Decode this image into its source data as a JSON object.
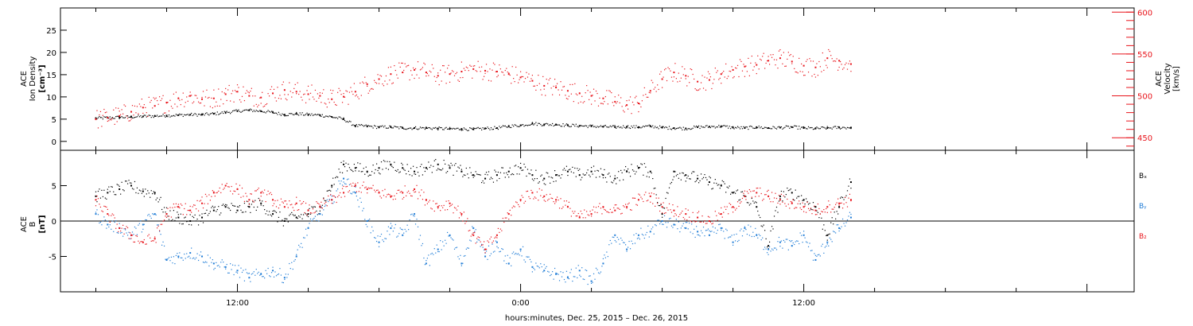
{
  "chart_data": [
    {
      "type": "scatter",
      "ylabel_lines": [
        "ACE",
        "Ion Density",
        "[cm⁻³]"
      ],
      "y2label_lines": [
        "ACE",
        "Velocity",
        "[km/s]"
      ],
      "ylim": [
        -2,
        30
      ],
      "yticks": [
        0,
        5,
        10,
        15,
        20,
        25
      ],
      "y2lim": [
        435,
        605
      ],
      "y2ticks": [
        450,
        500,
        550,
        600
      ],
      "colors": {
        "density": "#000000",
        "speed": "#e8141b"
      },
      "series": [
        {
          "key": "density",
          "axis": "left",
          "x": [
            6,
            6.5,
            7,
            7.5,
            8,
            8.5,
            9,
            9.5,
            10,
            10.5,
            11,
            11.5,
            12,
            12.5,
            13,
            13.5,
            14,
            14.5,
            15,
            15.5,
            16,
            16.5,
            17,
            17.5,
            18,
            18.5,
            19,
            19.5,
            20,
            20.5,
            21,
            21.5,
            22,
            22.5,
            23,
            23.5,
            24,
            24.5,
            25,
            25.5,
            26,
            26.5,
            27,
            27.5,
            28,
            28.5,
            29,
            29.5,
            30,
            30.5,
            31,
            31.5,
            32,
            32.5,
            33,
            33.5,
            34,
            34.5,
            35,
            35.5,
            36,
            36.5,
            37,
            37.5,
            38
          ],
          "values": [
            5.2,
            5.3,
            5.4,
            5.5,
            5.6,
            5.7,
            5.8,
            5.9,
            6.0,
            6.0,
            6.2,
            6.5,
            6.8,
            7.0,
            6.8,
            6.5,
            6.0,
            6.2,
            6.0,
            5.9,
            5.5,
            5.0,
            3.5,
            3.4,
            3.2,
            3.2,
            3.0,
            3.0,
            3.0,
            2.9,
            2.8,
            2.8,
            2.7,
            2.9,
            3.0,
            3.4,
            3.6,
            4.0,
            3.8,
            3.8,
            3.6,
            3.5,
            3.4,
            3.3,
            3.2,
            3.3,
            3.2,
            3.4,
            3.1,
            3.0,
            2.9,
            3.2,
            3.3,
            3.4,
            3.1,
            3.0,
            3.2,
            3.0,
            3.1,
            3.2,
            3.0,
            2.9,
            3.0,
            3.1,
            3.1
          ]
        },
        {
          "key": "speed",
          "axis": "right",
          "x": [
            6,
            6.5,
            7,
            7.5,
            8,
            8.5,
            9,
            9.5,
            10,
            10.5,
            11,
            11.5,
            12,
            12.5,
            13,
            13.5,
            14,
            14.5,
            15,
            15.5,
            16,
            16.5,
            17,
            17.5,
            18,
            18.5,
            19,
            19.5,
            20,
            20.5,
            21,
            21.5,
            22,
            22.5,
            23,
            23.5,
            24,
            24.5,
            25,
            25.5,
            26,
            26.5,
            27,
            27.5,
            28,
            28.5,
            29,
            29.5,
            30,
            30.5,
            31,
            31.5,
            32,
            32.5,
            33,
            33.5,
            34,
            34.5,
            35,
            35.5,
            36,
            36.5,
            37,
            37.5,
            38
          ],
          "values": [
            472,
            474,
            476,
            481,
            486,
            488,
            492,
            497,
            500,
            496,
            497,
            502,
            505,
            500,
            498,
            503,
            507,
            505,
            502,
            500,
            496,
            499,
            505,
            514,
            520,
            526,
            528,
            531,
            528,
            524,
            526,
            529,
            532,
            530,
            529,
            526,
            522,
            518,
            512,
            510,
            506,
            503,
            500,
            497,
            493,
            489,
            491,
            506,
            520,
            528,
            524,
            517,
            519,
            526,
            531,
            535,
            537,
            542,
            545,
            541,
            536,
            534,
            545,
            542,
            538
          ]
        }
      ],
      "x_title": ""
    },
    {
      "type": "scatter",
      "ylabel_lines": [
        "ACE",
        "B",
        "[nT]"
      ],
      "ylim": [
        -10,
        10
      ],
      "yticks": [
        -5,
        0,
        5
      ],
      "zero_line": true,
      "colors": {
        "bx": "#000000",
        "by": "#1f7cd6",
        "bz": "#e8141b"
      },
      "legend": [
        "Bₓ",
        "Bᵧ",
        "B₂"
      ],
      "series": [
        {
          "key": "bx",
          "x": [
            6,
            6.5,
            7,
            7.5,
            8,
            8.5,
            9,
            9.5,
            10,
            10.5,
            11,
            11.5,
            12,
            12.5,
            13,
            13.5,
            14,
            14.5,
            15,
            15.5,
            16,
            16.5,
            17,
            17.5,
            18,
            18.5,
            19,
            19.5,
            20,
            20.5,
            21,
            21.5,
            22,
            22.5,
            23,
            23.5,
            24,
            24.5,
            25,
            25.5,
            26,
            26.5,
            27,
            27.5,
            28,
            28.5,
            29,
            29.5,
            30,
            30.5,
            31,
            31.5,
            32,
            32.5,
            33,
            33.5,
            34,
            34.5,
            35,
            35.5,
            36,
            36.5,
            37,
            37.5,
            38
          ],
          "values": [
            3.5,
            4.0,
            4.5,
            5.0,
            4.2,
            4.0,
            1.0,
            0.5,
            0.0,
            0.5,
            1.5,
            2.0,
            1.5,
            2.0,
            2.5,
            1.0,
            0.0,
            0.5,
            1.0,
            2.0,
            5.0,
            8.0,
            7.5,
            7.0,
            7.5,
            8.0,
            7.5,
            7.0,
            7.5,
            8.0,
            7.5,
            7.0,
            6.5,
            6.0,
            6.5,
            7.0,
            7.5,
            6.5,
            6.0,
            6.5,
            7.0,
            6.5,
            7.0,
            6.5,
            6.0,
            7.0,
            7.5,
            7.0,
            1.0,
            7.0,
            6.5,
            6.0,
            5.5,
            5.0,
            4.0,
            3.5,
            2.0,
            -3.5,
            3.5,
            4.0,
            3.0,
            2.0,
            -2.0,
            2.0,
            5.5
          ]
        },
        {
          "key": "by",
          "x": [
            6,
            6.5,
            7,
            7.5,
            8,
            8.5,
            9,
            9.5,
            10,
            10.5,
            11,
            11.5,
            12,
            12.5,
            13,
            13.5,
            14,
            14.5,
            15,
            15.5,
            16,
            16.5,
            17,
            17.5,
            18,
            18.5,
            19,
            19.5,
            20,
            20.5,
            21,
            21.5,
            22,
            22.5,
            23,
            23.5,
            24,
            24.5,
            25,
            25.5,
            26,
            26.5,
            27,
            27.5,
            28,
            28.5,
            29,
            29.5,
            30,
            30.5,
            31,
            31.5,
            32,
            32.5,
            33,
            33.5,
            34,
            34.5,
            35,
            35.5,
            36,
            36.5,
            37,
            37.5,
            38
          ],
          "values": [
            1.0,
            -0.5,
            -1.0,
            -2.0,
            -0.5,
            1.0,
            -5.5,
            -5.0,
            -4.5,
            -5.0,
            -6.0,
            -6.5,
            -7.0,
            -8.0,
            -7.5,
            -7.0,
            -8.0,
            -5.0,
            -1.0,
            1.0,
            3.0,
            6.0,
            4.0,
            0.0,
            -3.0,
            -1.0,
            -2.0,
            1.0,
            -6.0,
            -4.0,
            -2.0,
            -6.0,
            -1.0,
            -5.0,
            -3.0,
            -6.0,
            -4.0,
            -6.5,
            -7.0,
            -7.5,
            -8.0,
            -7.0,
            -8.5,
            -6.0,
            -2.0,
            -4.0,
            -2.0,
            -1.5,
            0.0,
            -0.5,
            -1.0,
            -1.5,
            -2.0,
            -1.0,
            -3.0,
            -1.0,
            -2.0,
            -4.0,
            -3.0,
            -3.5,
            -2.0,
            -5.5,
            -3.0,
            -1.0,
            0.5
          ]
        },
        {
          "key": "bz",
          "x": [
            6,
            6.5,
            7,
            7.5,
            8,
            8.5,
            9,
            9.5,
            10,
            10.5,
            11,
            11.5,
            12,
            12.5,
            13,
            13.5,
            14,
            14.5,
            15,
            15.5,
            16,
            16.5,
            17,
            17.5,
            18,
            18.5,
            19,
            19.5,
            20,
            20.5,
            21,
            21.5,
            22,
            22.5,
            23,
            23.5,
            24,
            24.5,
            25,
            25.5,
            26,
            26.5,
            27,
            27.5,
            28,
            28.5,
            29,
            29.5,
            30,
            30.5,
            31,
            31.5,
            32,
            32.5,
            33,
            33.5,
            34,
            34.5,
            35,
            35.5,
            36,
            36.5,
            37,
            37.5,
            38
          ],
          "values": [
            3.0,
            1.0,
            -1.0,
            -2.0,
            -3.0,
            -2.5,
            1.0,
            2.0,
            1.5,
            2.5,
            4.0,
            5.0,
            4.5,
            3.0,
            4.0,
            3.0,
            2.0,
            2.5,
            1.5,
            2.0,
            3.0,
            4.0,
            5.0,
            4.5,
            4.0,
            3.5,
            4.0,
            4.5,
            3.0,
            2.0,
            2.5,
            1.0,
            -2.0,
            -4.0,
            -2.0,
            1.0,
            3.0,
            4.0,
            3.5,
            3.0,
            2.0,
            0.5,
            1.0,
            2.0,
            1.5,
            2.0,
            3.0,
            3.5,
            2.0,
            1.5,
            1.0,
            0.5,
            0.0,
            1.0,
            2.0,
            3.5,
            4.0,
            3.5,
            3.0,
            2.5,
            2.0,
            1.5,
            2.0,
            2.5,
            3.0
          ]
        }
      ],
      "x_title": "hours:minutes, Dec. 25, 2015 – Dec. 26, 2015"
    }
  ],
  "x_axis": {
    "xlim": [
      4.5,
      50
    ],
    "tick_labels": [
      {
        "at": 12,
        "label": "12:00"
      },
      {
        "at": 24,
        "label": "0:00"
      },
      {
        "at": 36,
        "label": "12:00"
      }
    ],
    "minor_every_hours": 3
  }
}
